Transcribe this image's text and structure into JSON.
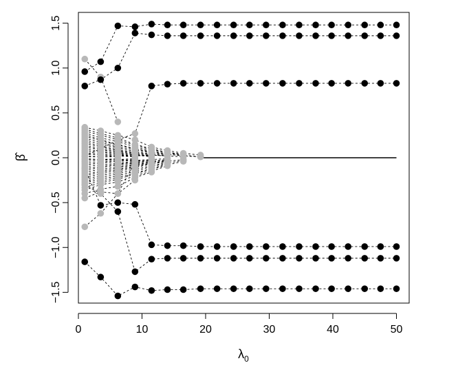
{
  "chart_data": {
    "type": "scatter",
    "title": "",
    "xlabel_main": "λ",
    "xlabel_sub": "0",
    "ylabel": "β̂",
    "xlim": [
      0,
      52
    ],
    "ylim": [
      -1.62,
      1.62
    ],
    "xticks": [
      0,
      10,
      20,
      30,
      40,
      50
    ],
    "yticks": [
      -1.5,
      -1.0,
      -0.5,
      0.0,
      0.5,
      1.0,
      1.5
    ],
    "ytick_labels": [
      "−1.5",
      "−1.0",
      "−0.5",
      "0.0",
      "0.5",
      "1.0",
      "1.5"
    ],
    "grid": false,
    "legend": "none",
    "lambda0": [
      1,
      3.5,
      6.2,
      8.9,
      11.5,
      14,
      16.5,
      19.2,
      21.8,
      24.4,
      26.9,
      29.5,
      32.1,
      34.7,
      37.3,
      39.8,
      42.4,
      45,
      47.5,
      50
    ],
    "selected_paths": [
      [
        0.96,
        1.07,
        1.47,
        1.46,
        1.49,
        1.48,
        1.48,
        1.48,
        1.48,
        1.48,
        1.48,
        1.48,
        1.48,
        1.48,
        1.48,
        1.48,
        1.48,
        1.48,
        1.48,
        1.48
      ],
      [
        0.8,
        0.87,
        1.0,
        1.39,
        1.37,
        1.36,
        1.36,
        1.36,
        1.36,
        1.36,
        1.36,
        1.36,
        1.36,
        1.36,
        1.36,
        1.36,
        1.36,
        1.36,
        1.36,
        1.36
      ],
      [
        0.02,
        0.1,
        0.2,
        0.27,
        0.8,
        0.82,
        0.83,
        0.83,
        0.83,
        0.83,
        0.83,
        0.83,
        0.83,
        0.83,
        0.83,
        0.83,
        0.83,
        0.83,
        0.83,
        0.83
      ],
      [
        -0.12,
        -0.53,
        -0.5,
        -0.52,
        -0.97,
        -0.98,
        -0.98,
        -0.99,
        -0.99,
        -0.99,
        -0.99,
        -0.99,
        -0.99,
        -0.99,
        -0.99,
        -0.99,
        -0.99,
        -0.99,
        -0.99,
        -0.99
      ],
      [
        -0.3,
        -0.4,
        -0.6,
        -1.27,
        -1.13,
        -1.12,
        -1.12,
        -1.12,
        -1.12,
        -1.12,
        -1.12,
        -1.12,
        -1.12,
        -1.12,
        -1.12,
        -1.12,
        -1.12,
        -1.12,
        -1.12,
        -1.12
      ],
      [
        -1.16,
        -1.33,
        -1.54,
        -1.44,
        -1.48,
        -1.47,
        -1.47,
        -1.46,
        -1.46,
        -1.46,
        -1.46,
        -1.46,
        -1.46,
        -1.46,
        -1.46,
        -1.46,
        -1.46,
        -1.46,
        -1.46,
        -1.46
      ]
    ],
    "unselected_paths": [
      [
        1.1,
        0.9,
        0.4
      ],
      [
        -0.77,
        -0.62,
        -0.4,
        -0.05
      ],
      [
        0.34,
        0.3,
        0.25,
        0.2,
        0.12,
        0.08,
        0.05,
        0.03
      ],
      [
        0.32,
        0.27,
        0.22,
        0.15,
        0.1,
        0.06,
        0.04
      ],
      [
        0.3,
        0.25,
        0.2,
        0.14,
        0.09,
        0.06,
        0.03,
        0.01
      ],
      [
        0.28,
        0.22,
        0.18,
        0.12,
        0.08,
        0.05,
        0.03
      ],
      [
        0.26,
        0.2,
        0.15,
        0.1,
        0.07,
        0.04,
        0.02
      ],
      [
        0.24,
        0.19,
        0.14,
        0.1,
        0.06,
        0.04,
        0.02,
        0.01
      ],
      [
        0.22,
        0.17,
        0.12,
        0.09,
        0.05,
        0.03
      ],
      [
        0.2,
        0.15,
        0.11,
        0.07,
        0.04,
        0.02
      ],
      [
        0.18,
        0.13,
        0.09,
        0.06,
        0.03,
        0.02
      ],
      [
        0.16,
        0.12,
        0.08,
        0.05,
        0.03
      ],
      [
        0.14,
        0.1,
        0.07,
        0.04,
        0.02
      ],
      [
        0.12,
        0.09,
        0.06,
        0.03,
        0.02
      ],
      [
        0.1,
        0.07,
        0.05,
        0.03,
        0.01
      ],
      [
        0.08,
        0.06,
        0.04,
        0.02
      ],
      [
        0.06,
        0.04,
        0.03,
        0.02
      ],
      [
        0.04,
        0.03,
        0.02,
        0.01
      ],
      [
        0.02,
        0.01,
        0.01
      ],
      [
        -0.02,
        -0.02,
        -0.01
      ],
      [
        -0.04,
        -0.03,
        -0.02,
        -0.01
      ],
      [
        -0.06,
        -0.05,
        -0.03,
        -0.02
      ],
      [
        -0.08,
        -0.06,
        -0.04,
        -0.03
      ],
      [
        -0.1,
        -0.08,
        -0.06,
        -0.04,
        -0.02
      ],
      [
        -0.12,
        -0.1,
        -0.07,
        -0.05,
        -0.03
      ],
      [
        -0.14,
        -0.11,
        -0.08,
        -0.06,
        -0.03
      ],
      [
        -0.16,
        -0.13,
        -0.1,
        -0.07,
        -0.04,
        -0.02
      ],
      [
        -0.18,
        -0.15,
        -0.11,
        -0.08,
        -0.05,
        -0.02
      ],
      [
        -0.2,
        -0.16,
        -0.13,
        -0.09,
        -0.06,
        -0.03
      ],
      [
        -0.22,
        -0.18,
        -0.14,
        -0.1,
        -0.06,
        -0.04
      ],
      [
        -0.24,
        -0.2,
        -0.16,
        -0.11,
        -0.07,
        -0.04,
        -0.02
      ],
      [
        -0.26,
        -0.22,
        -0.18,
        -0.13,
        -0.09,
        -0.05
      ],
      [
        -0.28,
        -0.24,
        -0.2,
        -0.15,
        -0.1,
        -0.06,
        -0.03
      ],
      [
        -0.3,
        -0.26,
        -0.22,
        -0.17,
        -0.12,
        -0.07
      ],
      [
        -0.33,
        -0.28,
        -0.24,
        -0.18,
        -0.13,
        -0.08,
        -0.04
      ],
      [
        -0.36,
        -0.3,
        -0.27,
        -0.2,
        -0.15,
        -0.09
      ],
      [
        -0.4,
        -0.35,
        -0.32,
        -0.22,
        -0.16
      ],
      [
        -0.45,
        -0.38,
        -0.4,
        -0.25
      ],
      [
        0.01,
        0.01,
        0.02,
        0.02,
        0.03,
        0.02,
        0.01
      ],
      [
        -0.01,
        -0.02,
        -0.02,
        -0.03,
        -0.02,
        -0.01
      ]
    ],
    "zero_line_from": 19.2,
    "colors": {
      "selected": "#000000",
      "unselected": "#b8b8b8",
      "axis": "#000000"
    }
  }
}
